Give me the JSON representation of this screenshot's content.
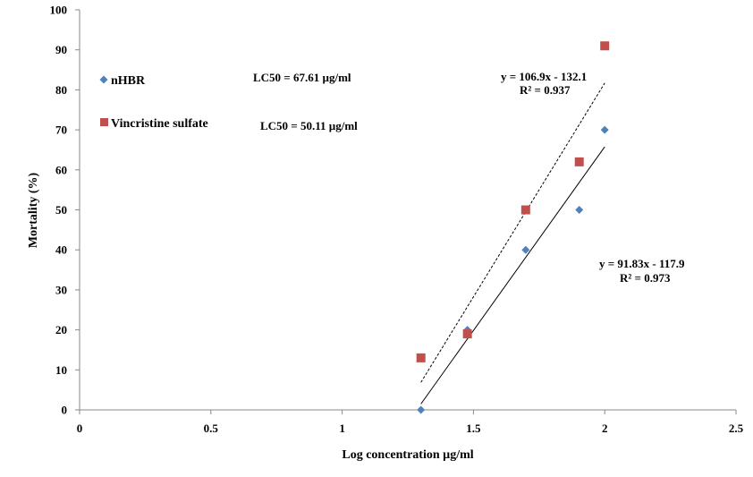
{
  "chart_data": {
    "type": "scatter",
    "xlabel": "Log concentration µg/ml",
    "ylabel": "Mortality (%)",
    "xlim": [
      0,
      2.5
    ],
    "ylim": [
      0,
      100
    ],
    "x_ticks": [
      "0",
      "0.5",
      "1",
      "1.5",
      "2",
      "2.5"
    ],
    "y_ticks": [
      "0",
      "10",
      "20",
      "30",
      "40",
      "50",
      "60",
      "70",
      "80",
      "90",
      "100"
    ],
    "grid": false,
    "legend": "left",
    "series": [
      {
        "name": "nHBR",
        "marker": "diamond",
        "color": "#4F81BD",
        "x": [
          1.3,
          1.477,
          1.699,
          1.903,
          2.0
        ],
        "y": [
          0,
          20,
          40,
          50,
          70
        ],
        "trendline": {
          "style": "solid",
          "slope": 91.83,
          "intercept": -117.9,
          "x_range": [
            1.3,
            2.0
          ],
          "equation": "y = 91.83x - 117.9",
          "r2": "R² = 0.973"
        },
        "lc50": "LC50 = 67.61 µg/ml"
      },
      {
        "name": "Vincristine sulfate",
        "marker": "square",
        "color": "#C0504D",
        "x": [
          1.3,
          1.477,
          1.699,
          1.903,
          2.0
        ],
        "y": [
          13,
          19,
          50,
          62,
          91
        ],
        "trendline": {
          "style": "dashed",
          "slope": 106.9,
          "intercept": -132.1,
          "x_range": [
            1.3,
            2.0
          ],
          "equation": "y = 106.9x - 132.1",
          "r2": "R² = 0.937"
        },
        "lc50": "LC50 =  50.11 µg/ml"
      }
    ]
  }
}
